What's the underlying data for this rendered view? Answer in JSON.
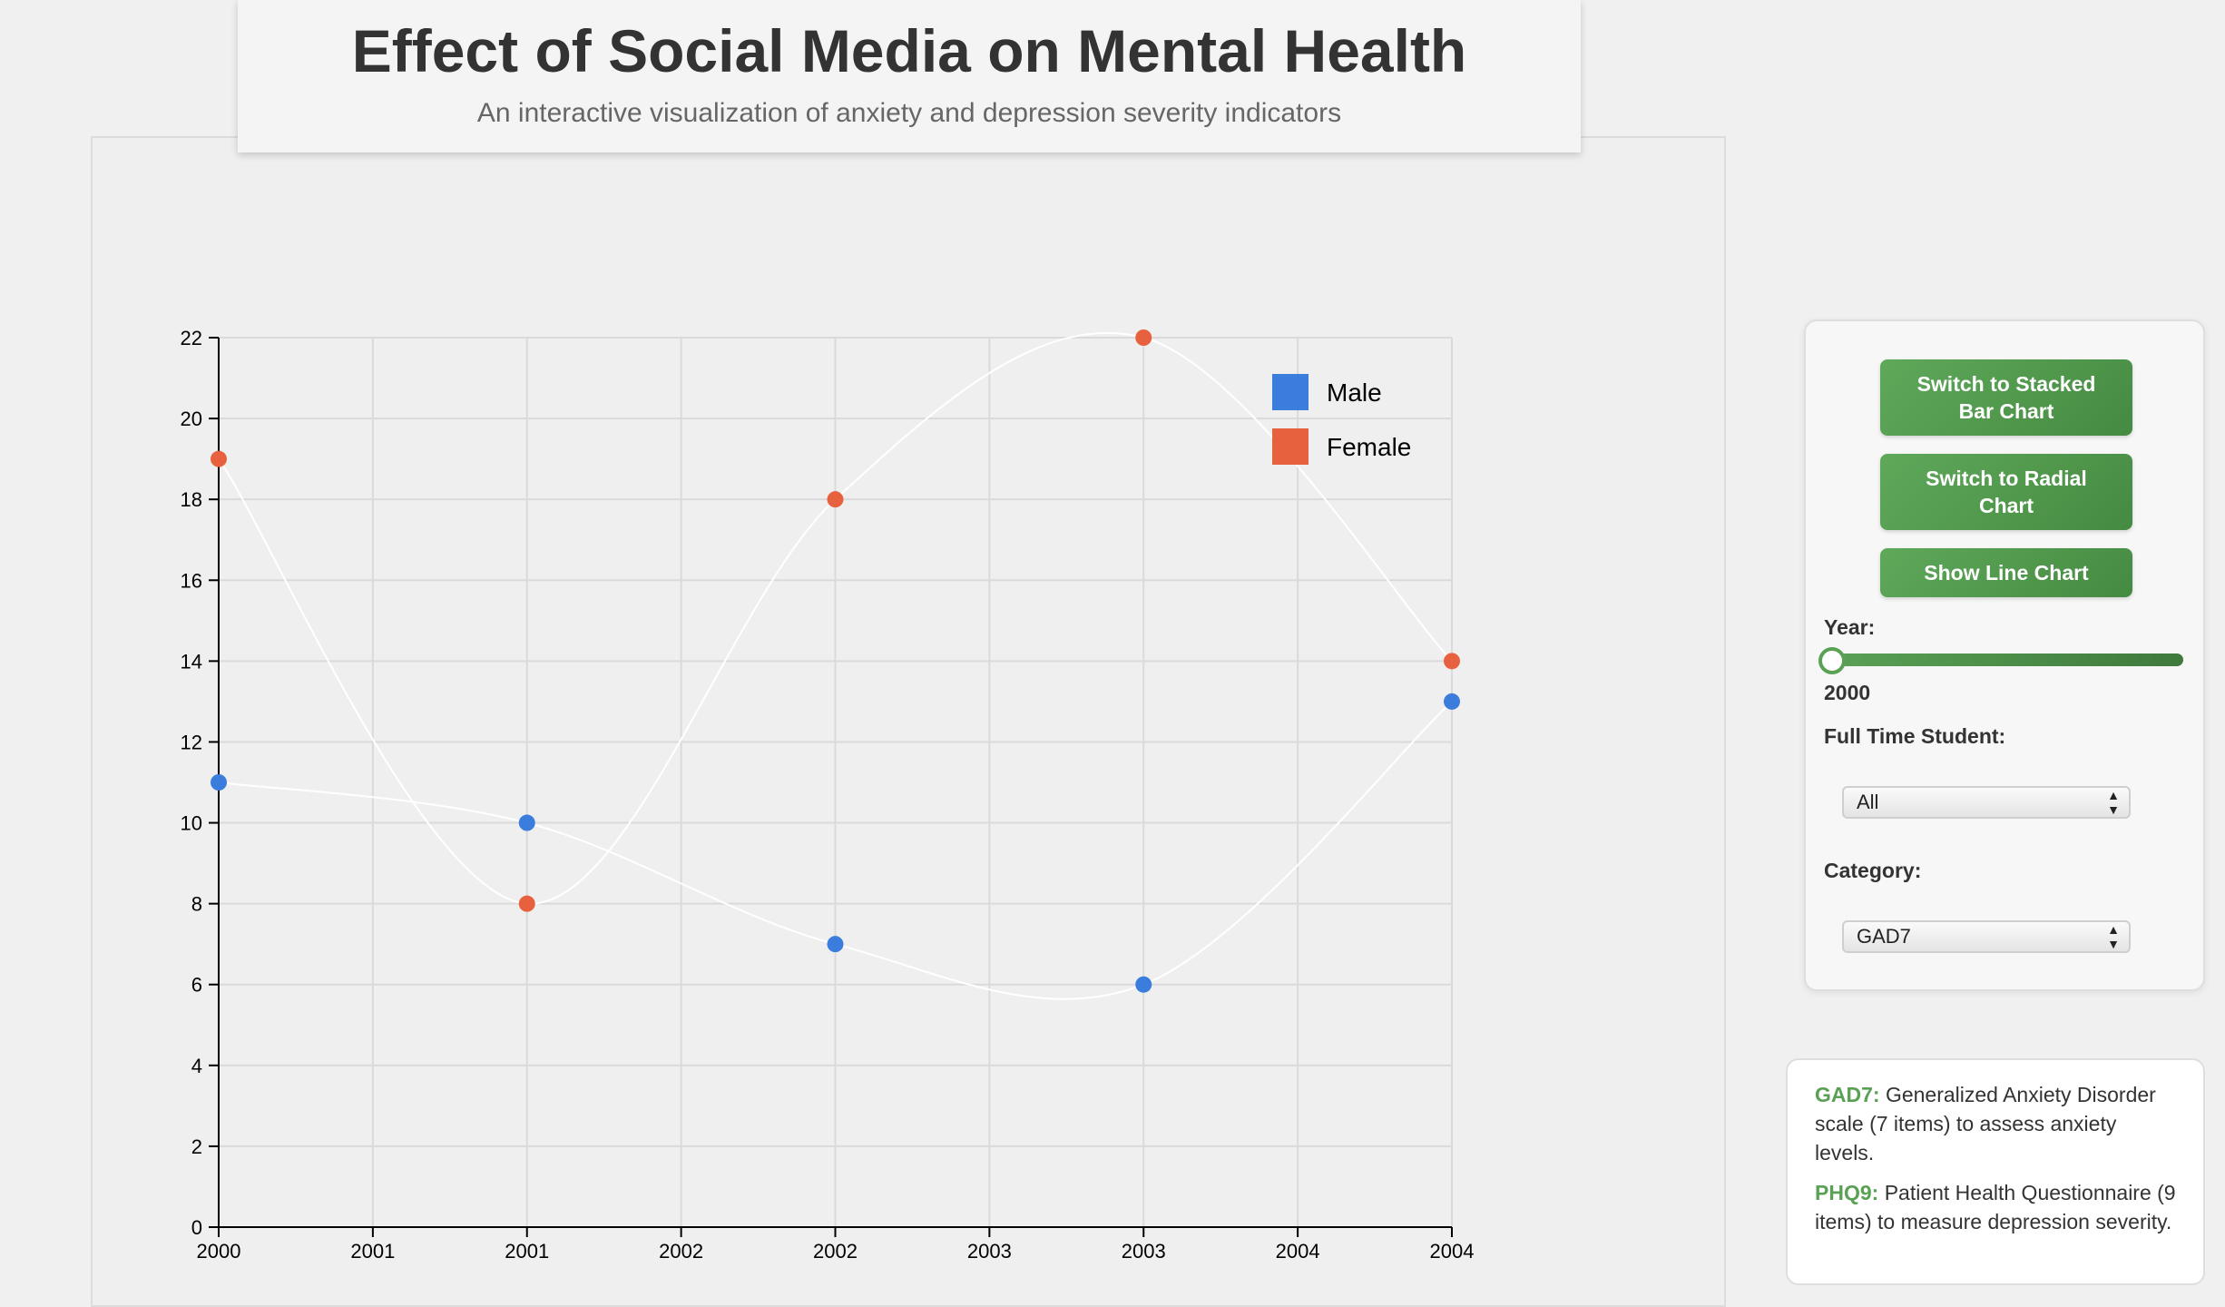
{
  "header": {
    "title": "Effect of Social Media on Mental Health",
    "subtitle": "An interactive visualization of anxiety and depression severity indicators"
  },
  "colors": {
    "male": "#3b7ddd",
    "female": "#e8613f",
    "accent": "#5aa156",
    "line": "#ffffff"
  },
  "chart_data": {
    "type": "scatter",
    "title": "",
    "xlabel": "",
    "ylabel": "",
    "x_tick_labels": [
      "2000",
      "2001",
      "2001",
      "2002",
      "2002",
      "2003",
      "2003",
      "2004",
      "2004"
    ],
    "y_ticks": [
      0,
      2,
      4,
      6,
      8,
      10,
      12,
      14,
      16,
      18,
      20,
      22
    ],
    "ylim": [
      0,
      22
    ],
    "grid": true,
    "legend_position": "top-right",
    "curve": "smooth",
    "series": [
      {
        "name": "Male",
        "color": "#3b7ddd",
        "points": [
          {
            "x": "2000",
            "y": 11
          },
          {
            "x": "2001",
            "y": 10
          },
          {
            "x": "2002",
            "y": 7
          },
          {
            "x": "2003",
            "y": 6
          },
          {
            "x": "2004",
            "y": 13
          }
        ]
      },
      {
        "name": "Female",
        "color": "#e8613f",
        "points": [
          {
            "x": "2000",
            "y": 19
          },
          {
            "x": "2001",
            "y": 8
          },
          {
            "x": "2002",
            "y": 18
          },
          {
            "x": "2003",
            "y": 22
          },
          {
            "x": "2004",
            "y": 14
          }
        ]
      }
    ]
  },
  "controls": {
    "stacked_button": "Switch to Stacked Bar Chart",
    "radial_button": "Switch to Radial Chart",
    "line_button": "Show Line Chart",
    "year_label": "Year:",
    "year_value": "2000",
    "slider_position": 0,
    "student_label": "Full Time Student:",
    "student_selected": "All",
    "category_label": "Category:",
    "category_selected": "GAD7"
  },
  "info": {
    "gad7_term": "GAD7:",
    "gad7_desc": "Generalized Anxiety Disorder scale (7 items) to assess anxiety levels.",
    "phq9_term": "PHQ9:",
    "phq9_desc": "Patient Health Questionnaire (9 items) to measure depression severity."
  }
}
